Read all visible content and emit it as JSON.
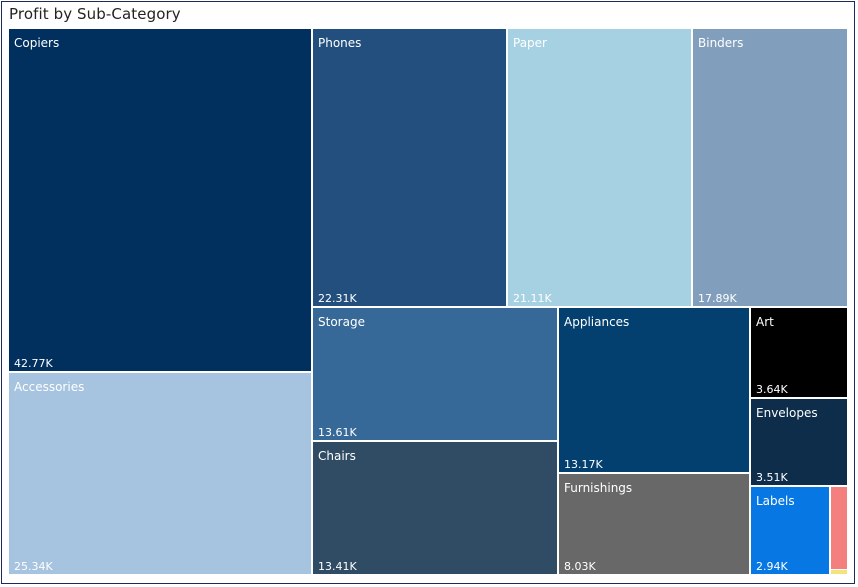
{
  "visual": {
    "title": "Profit by Sub-Category"
  },
  "chart_data": {
    "type": "treemap",
    "title": "Profit by Sub-Category",
    "items": [
      {
        "name": "Copiers",
        "label": "42.77K",
        "value": 42770,
        "color": "#01305f",
        "text_color": "#ffffff"
      },
      {
        "name": "Accessories",
        "label": "25.34K",
        "value": 25340,
        "color": "#a6c3df",
        "text_color": "#ffffff"
      },
      {
        "name": "Phones",
        "label": "22.31K",
        "value": 22310,
        "color": "#224f7e",
        "text_color": "#ffffff"
      },
      {
        "name": "Paper",
        "label": "21.11K",
        "value": 21110,
        "color": "#a5d1e2",
        "text_color": "#ffffff"
      },
      {
        "name": "Binders",
        "label": "17.89K",
        "value": 17890,
        "color": "#819fbd",
        "text_color": "#ffffff"
      },
      {
        "name": "Storage",
        "label": "13.61K",
        "value": 13610,
        "color": "#366898",
        "text_color": "#ffffff"
      },
      {
        "name": "Chairs",
        "label": "13.41K",
        "value": 13410,
        "color": "#304c64",
        "text_color": "#ffffff"
      },
      {
        "name": "Appliances",
        "label": "13.17K",
        "value": 13170,
        "color": "#034070",
        "text_color": "#ffffff"
      },
      {
        "name": "Furnishings",
        "label": "8.03K",
        "value": 8030,
        "color": "#686868",
        "text_color": "#ffffff"
      },
      {
        "name": "Art",
        "label": "3.64K",
        "value": 3640,
        "color": "#000000",
        "text_color": "#ffffff"
      },
      {
        "name": "Envelopes",
        "label": "3.51K",
        "value": 3510,
        "color": "#0d2d4b",
        "text_color": "#ffffff"
      },
      {
        "name": "Labels",
        "label": "2.94K",
        "value": 2940,
        "color": "#0677e3",
        "text_color": "#ffffff"
      },
      {
        "name": "",
        "label": "",
        "value": 900,
        "color": "#f47f7f",
        "text_color": "#ffffff"
      },
      {
        "name": "",
        "label": "",
        "value": 120,
        "color": "#f4e27a",
        "text_color": "#ffffff"
      }
    ]
  }
}
